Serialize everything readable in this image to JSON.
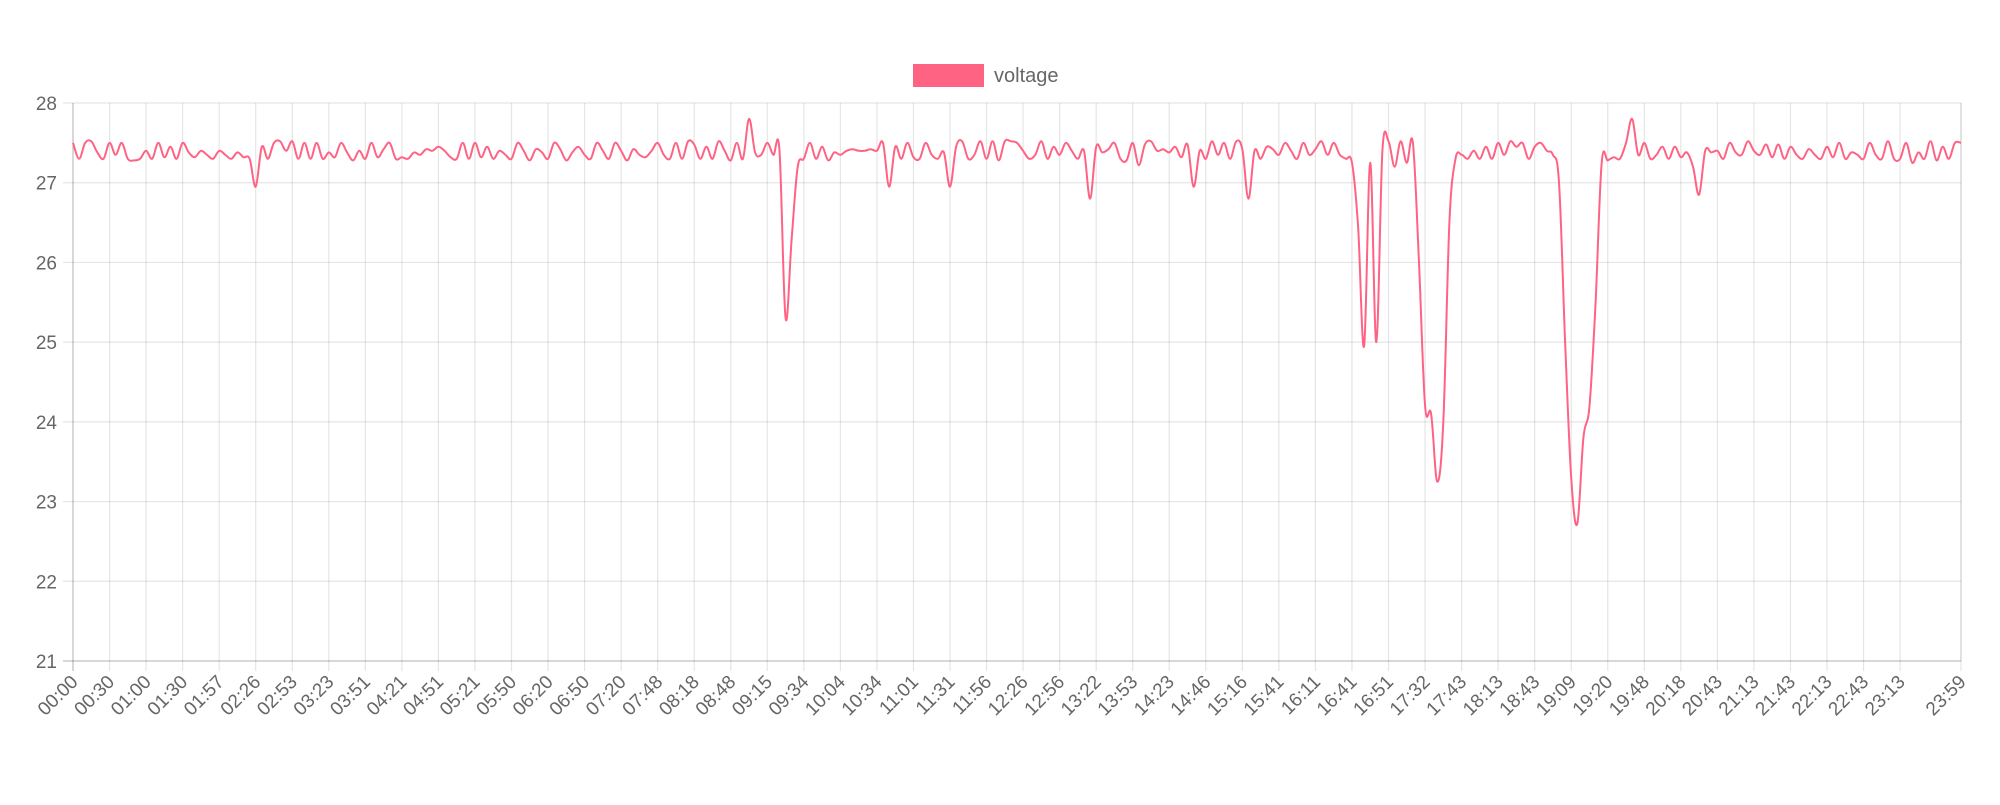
{
  "chart_data": {
    "type": "line",
    "title": "",
    "xlabel": "",
    "ylabel": "",
    "ylim": [
      21,
      28
    ],
    "yticks": [
      "21",
      "22",
      "23",
      "24",
      "25",
      "26",
      "27",
      "28"
    ],
    "grid": true,
    "legend_position": "top",
    "xtick_labels": [
      "00:00",
      "00:30",
      "01:00",
      "01:30",
      "01:57",
      "02:26",
      "02:53",
      "03:23",
      "03:51",
      "04:21",
      "04:51",
      "05:21",
      "05:50",
      "06:20",
      "06:50",
      "07:20",
      "07:48",
      "08:18",
      "08:48",
      "09:15",
      "09:34",
      "10:04",
      "10:34",
      "11:01",
      "11:31",
      "11:56",
      "12:26",
      "12:56",
      "13:22",
      "13:53",
      "14:23",
      "14:46",
      "15:16",
      "15:41",
      "16:11",
      "16:41",
      "16:51",
      "17:32",
      "17:43",
      "18:13",
      "18:43",
      "19:09",
      "19:20",
      "19:48",
      "20:18",
      "20:43",
      "21:13",
      "21:43",
      "22:13",
      "22:43",
      "23:13",
      "23:59"
    ],
    "series": [
      {
        "name": "voltage",
        "color": "#ff6384",
        "values": [
          27.5,
          27.3,
          27.5,
          27.52,
          27.38,
          27.3,
          27.5,
          27.35,
          27.5,
          27.3,
          27.28,
          27.3,
          27.4,
          27.3,
          27.5,
          27.32,
          27.45,
          27.3,
          27.5,
          27.38,
          27.32,
          27.4,
          27.35,
          27.3,
          27.4,
          27.35,
          27.3,
          27.38,
          27.32,
          27.3,
          26.95,
          27.45,
          27.3,
          27.5,
          27.52,
          27.4,
          27.52,
          27.3,
          27.5,
          27.3,
          27.5,
          27.3,
          27.38,
          27.32,
          27.5,
          27.38,
          27.28,
          27.4,
          27.3,
          27.5,
          27.32,
          27.42,
          27.5,
          27.3,
          27.32,
          27.3,
          27.38,
          27.35,
          27.42,
          27.4,
          27.45,
          27.4,
          27.32,
          27.3,
          27.5,
          27.3,
          27.5,
          27.32,
          27.45,
          27.3,
          27.4,
          27.35,
          27.3,
          27.5,
          27.4,
          27.28,
          27.42,
          27.38,
          27.3,
          27.5,
          27.42,
          27.28,
          27.38,
          27.45,
          27.35,
          27.3,
          27.5,
          27.4,
          27.3,
          27.5,
          27.4,
          27.28,
          27.42,
          27.35,
          27.32,
          27.4,
          27.5,
          27.35,
          27.3,
          27.5,
          27.3,
          27.52,
          27.48,
          27.3,
          27.45,
          27.3,
          27.52,
          27.4,
          27.28,
          27.5,
          27.3,
          27.8,
          27.38,
          27.35,
          27.5,
          27.35,
          27.4,
          25.3,
          26.3,
          27.2,
          27.3,
          27.5,
          27.3,
          27.45,
          27.28,
          27.38,
          27.35,
          27.4,
          27.42,
          27.4,
          27.4,
          27.42,
          27.4,
          27.5,
          26.95,
          27.45,
          27.3,
          27.5,
          27.32,
          27.3,
          27.5,
          27.35,
          27.3,
          27.38,
          26.95,
          27.45,
          27.52,
          27.3,
          27.35,
          27.52,
          27.3,
          27.52,
          27.28,
          27.52,
          27.52,
          27.5,
          27.4,
          27.3,
          27.35,
          27.52,
          27.3,
          27.45,
          27.35,
          27.5,
          27.4,
          27.3,
          27.4,
          26.8,
          27.45,
          27.38,
          27.42,
          27.5,
          27.3,
          27.28,
          27.5,
          27.22,
          27.48,
          27.52,
          27.4,
          27.42,
          27.38,
          27.45,
          27.32,
          27.48,
          26.95,
          27.4,
          27.3,
          27.52,
          27.35,
          27.5,
          27.3,
          27.52,
          27.42,
          26.8,
          27.4,
          27.3,
          27.45,
          27.42,
          27.35,
          27.5,
          27.4,
          27.3,
          27.5,
          27.35,
          27.42,
          27.52,
          27.35,
          27.5,
          27.35,
          27.3,
          27.25,
          26.45,
          24.95,
          27.25,
          25.0,
          27.4,
          27.52,
          27.2,
          27.52,
          27.25,
          27.5,
          26.0,
          24.2,
          24.1,
          23.25,
          24.0,
          26.5,
          27.3,
          27.35,
          27.3,
          27.4,
          27.3,
          27.45,
          27.3,
          27.5,
          27.35,
          27.52,
          27.45,
          27.5,
          27.3,
          27.45,
          27.5,
          27.4,
          27.35,
          27.0,
          25.0,
          23.3,
          22.72,
          23.8,
          24.2,
          25.5,
          27.25,
          27.28,
          27.32,
          27.3,
          27.5,
          27.8,
          27.35,
          27.5,
          27.3,
          27.35,
          27.45,
          27.3,
          27.45,
          27.32,
          27.38,
          27.2,
          26.85,
          27.4,
          27.38,
          27.4,
          27.3,
          27.5,
          27.38,
          27.35,
          27.52,
          27.4,
          27.35,
          27.48,
          27.32,
          27.48,
          27.3,
          27.45,
          27.35,
          27.3,
          27.42,
          27.35,
          27.3,
          27.45,
          27.32,
          27.5,
          27.3,
          27.38,
          27.35,
          27.3,
          27.5,
          27.35,
          27.3,
          27.52,
          27.3,
          27.3,
          27.5,
          27.25,
          27.38,
          27.3,
          27.52,
          27.28,
          27.45,
          27.3,
          27.5,
          27.5
        ]
      }
    ]
  }
}
